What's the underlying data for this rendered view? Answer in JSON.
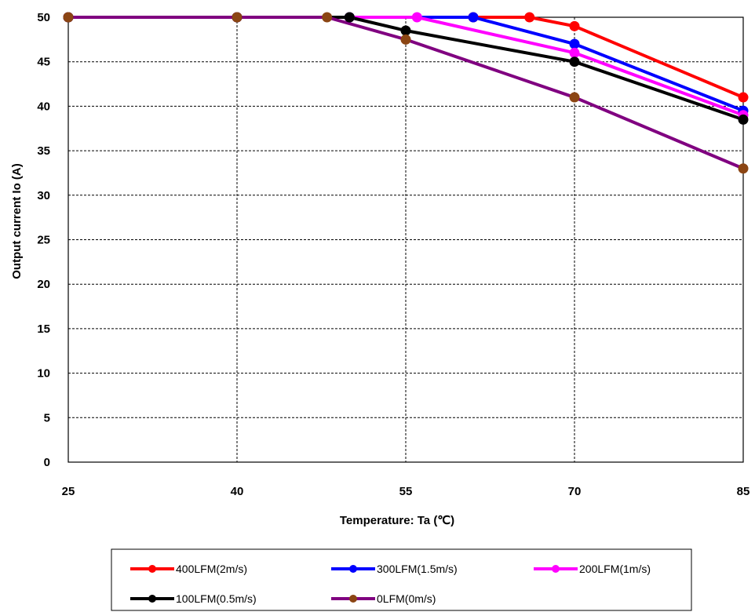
{
  "chart_data": {
    "type": "line",
    "xlabel": "Temperature:  Ta (℃)",
    "ylabel": "Output current  Io (A)",
    "xlim": [
      25,
      85
    ],
    "ylim": [
      0,
      50
    ],
    "x_ticks": [
      "25",
      "40",
      "55",
      "70",
      "85"
    ],
    "y_ticks": [
      "0",
      "5",
      "10",
      "15",
      "20",
      "25",
      "30",
      "35",
      "40",
      "45",
      "50"
    ],
    "grid": true,
    "legend_position": "bottom",
    "series": [
      {
        "name": "400LFM(2m/s)",
        "color": "#ff0000",
        "points": [
          [
            25,
            50
          ],
          [
            40,
            50
          ],
          [
            50,
            50
          ],
          [
            61,
            50
          ],
          [
            66,
            50
          ],
          [
            70,
            49
          ],
          [
            85,
            41
          ]
        ]
      },
      {
        "name": "300LFM(1.5m/s)",
        "color": "#0000ff",
        "points": [
          [
            25,
            50
          ],
          [
            40,
            50
          ],
          [
            50,
            50
          ],
          [
            61,
            50
          ],
          [
            70,
            47
          ],
          [
            85,
            39.5
          ]
        ]
      },
      {
        "name": "200LFM(1m/s)",
        "color": "#ff00ff",
        "points": [
          [
            25,
            50
          ],
          [
            40,
            50
          ],
          [
            56,
            50
          ],
          [
            70,
            46
          ],
          [
            85,
            39
          ]
        ]
      },
      {
        "name": "100LFM(0.5m/s)",
        "color": "#000000",
        "points": [
          [
            25,
            50
          ],
          [
            40,
            50
          ],
          [
            50,
            50
          ],
          [
            55,
            48.5
          ],
          [
            70,
            45
          ],
          [
            85,
            38.5
          ]
        ]
      },
      {
        "name": "0LFM(0m/s)",
        "color": "#800080",
        "marker_color": "#8b4513",
        "points": [
          [
            25,
            50
          ],
          [
            40,
            50
          ],
          [
            48,
            50
          ],
          [
            55,
            47.5
          ],
          [
            70,
            41
          ],
          [
            85,
            33
          ]
        ]
      }
    ]
  }
}
